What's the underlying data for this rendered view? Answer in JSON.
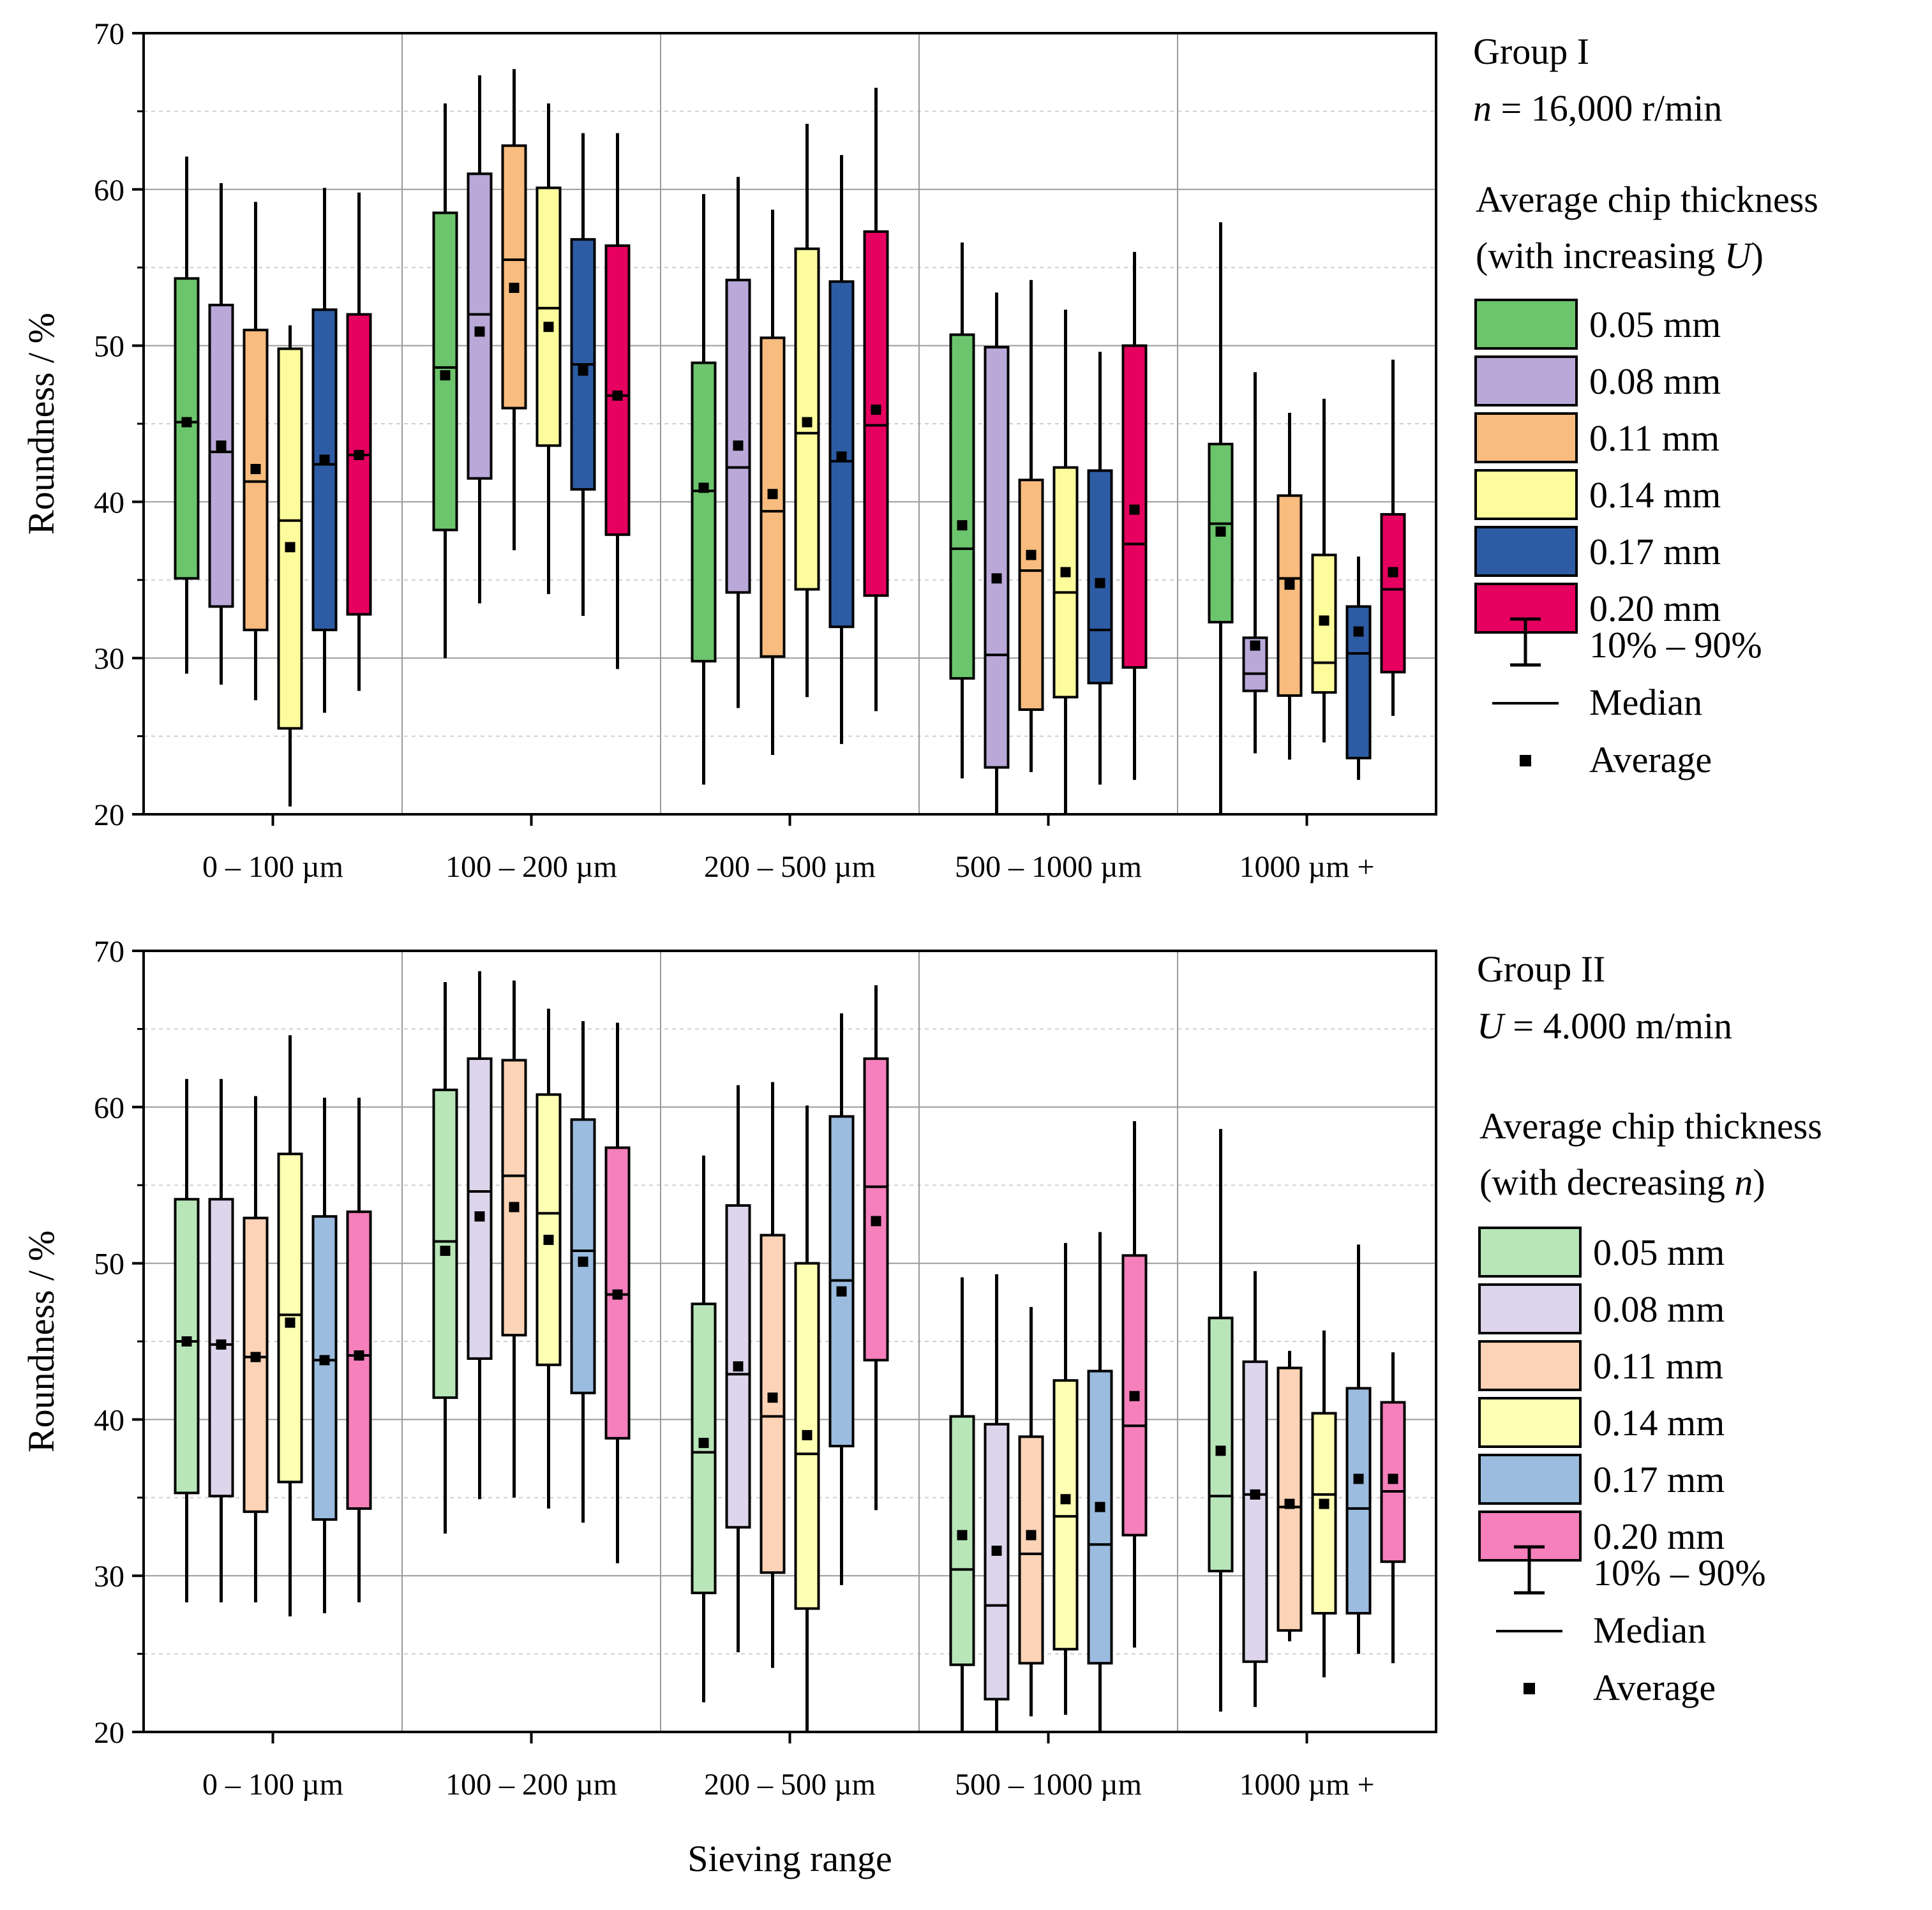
{
  "chart_data": [
    {
      "type": "box",
      "title": "Group I",
      "subtitle": "n = 16,000 r/min",
      "legend_title": [
        "Average chip thickness",
        "(with increasing U)"
      ],
      "ylabel": "Roundness / %",
      "xlabel": "",
      "ylim": [
        20,
        70
      ],
      "yticks": [
        20,
        30,
        40,
        50,
        60,
        70
      ],
      "grid": true,
      "legend_position": "right",
      "categories": [
        "0 – 100 µm",
        "100 – 200 µm",
        "200 – 500 µm",
        "500 – 1000 µm",
        "1000 µm +"
      ],
      "series": [
        {
          "name": "0.05 mm",
          "color": "#6cc56c",
          "boxes": [
            {
              "p10": 29,
              "q1": 35.1,
              "median": 45.1,
              "q3": 54.3,
              "p90": 62.1,
              "mean": 45.1
            },
            {
              "p10": 30,
              "q1": 38.2,
              "median": 48.6,
              "q3": 58.5,
              "p90": 65.5,
              "mean": 48.1
            },
            {
              "p10": 21.9,
              "q1": 29.8,
              "median": 40.7,
              "q3": 48.9,
              "p90": 59.7,
              "mean": 40.9
            },
            {
              "p10": 22.3,
              "q1": 28.7,
              "median": 37,
              "q3": 50.7,
              "p90": 56.6,
              "mean": 38.5
            },
            {
              "p10": 20,
              "q1": 32.3,
              "median": 38.6,
              "q3": 43.7,
              "p90": 57.9,
              "mean": 38.1
            }
          ]
        },
        {
          "name": "0.08 mm",
          "color": "#b9a8d8",
          "boxes": [
            {
              "p10": 28.3,
              "q1": 33.3,
              "median": 43.2,
              "q3": 52.6,
              "p90": 60.4,
              "mean": 43.6
            },
            {
              "p10": 33.5,
              "q1": 41.5,
              "median": 52,
              "q3": 61,
              "p90": 67.3,
              "mean": 50.9
            },
            {
              "p10": 26.8,
              "q1": 34.2,
              "median": 42.2,
              "q3": 54.2,
              "p90": 60.8,
              "mean": 43.6
            },
            {
              "p10": 20,
              "q1": 23,
              "median": 30.2,
              "q3": 49.9,
              "p90": 53.4,
              "mean": 35.1
            },
            {
              "p10": 23.9,
              "q1": 27.9,
              "median": 29,
              "q3": 31.3,
              "p90": 48.3,
              "mean": 30.8
            }
          ]
        },
        {
          "name": "0.11 mm",
          "color": "#f7bc7e",
          "boxes": [
            {
              "p10": 27.3,
              "q1": 31.8,
              "median": 41.3,
              "q3": 51,
              "p90": 59.2,
              "mean": 42.1
            },
            {
              "p10": 36.9,
              "q1": 46,
              "median": 55.5,
              "q3": 62.8,
              "p90": 67.7,
              "mean": 53.7
            },
            {
              "p10": 23.8,
              "q1": 30.1,
              "median": 39.4,
              "q3": 50.5,
              "p90": 58.7,
              "mean": 40.5
            },
            {
              "p10": 22.7,
              "q1": 26.7,
              "median": 35.6,
              "q3": 41.4,
              "p90": 54.2,
              "mean": 36.6
            },
            {
              "p10": 23.5,
              "q1": 27.6,
              "median": 35.1,
              "q3": 40.4,
              "p90": 45.7,
              "mean": 34.7
            }
          ]
        },
        {
          "name": "0.14 mm",
          "color": "#fdfc9c",
          "boxes": [
            {
              "p10": 20.5,
              "q1": 25.5,
              "median": 38.8,
              "q3": 49.8,
              "p90": 51.3,
              "mean": 37.1
            },
            {
              "p10": 34.1,
              "q1": 43.6,
              "median": 52.4,
              "q3": 60.1,
              "p90": 65.5,
              "mean": 51.2
            },
            {
              "p10": 27.5,
              "q1": 34.4,
              "median": 44.4,
              "q3": 56.2,
              "p90": 64.2,
              "mean": 45.1
            },
            {
              "p10": 20,
              "q1": 27.5,
              "median": 34.2,
              "q3": 42.2,
              "p90": 52.3,
              "mean": 35.5
            },
            {
              "p10": 24.6,
              "q1": 27.8,
              "median": 29.7,
              "q3": 36.6,
              "p90": 46.6,
              "mean": 32.4
            }
          ]
        },
        {
          "name": "0.17 mm",
          "color": "#2e5ca4",
          "boxes": [
            {
              "p10": 26.5,
              "q1": 31.8,
              "median": 42.4,
              "q3": 52.3,
              "p90": 60.1,
              "mean": 42.7
            },
            {
              "p10": 32.7,
              "q1": 40.8,
              "median": 48.8,
              "q3": 56.8,
              "p90": 63.6,
              "mean": 48.4
            },
            {
              "p10": 24.5,
              "q1": 32,
              "median": 42.6,
              "q3": 54.1,
              "p90": 62.2,
              "mean": 42.9
            },
            {
              "p10": 21.9,
              "q1": 28.4,
              "median": 31.8,
              "q3": 42,
              "p90": 49.6,
              "mean": 34.8
            },
            {
              "p10": 22.2,
              "q1": 23.6,
              "median": 30.3,
              "q3": 33.3,
              "p90": 36.5,
              "mean": 31.7
            }
          ]
        },
        {
          "name": "0.20 mm",
          "color": "#e6005f",
          "boxes": [
            {
              "p10": 27.9,
              "q1": 32.8,
              "median": 43,
              "q3": 52,
              "p90": 59.8,
              "mean": 43
            },
            {
              "p10": 29.3,
              "q1": 37.9,
              "median": 46.8,
              "q3": 56.4,
              "p90": 63.6,
              "mean": 46.8
            },
            {
              "p10": 26.6,
              "q1": 34,
              "median": 44.9,
              "q3": 57.3,
              "p90": 66.5,
              "mean": 45.9
            },
            {
              "p10": 22.2,
              "q1": 29.4,
              "median": 37.3,
              "q3": 50,
              "p90": 56,
              "mean": 39.5
            },
            {
              "p10": 26.3,
              "q1": 29.1,
              "median": 34.4,
              "q3": 39.2,
              "p90": 49.1,
              "mean": 35.5
            }
          ]
        }
      ],
      "legend_extra": [
        "10% – 90%",
        "Median",
        "Average"
      ]
    },
    {
      "type": "box",
      "title": "Group II",
      "subtitle": "U = 4.000 m/min",
      "legend_title": [
        "Average chip thickness",
        "(with decreasing n)"
      ],
      "ylabel": "Roundness / %",
      "xlabel": "Sieving range",
      "ylim": [
        20,
        70
      ],
      "yticks": [
        20,
        30,
        40,
        50,
        60,
        70
      ],
      "grid": true,
      "legend_position": "right",
      "categories": [
        "0 – 100 µm",
        "100 – 200 µm",
        "200 – 500 µm",
        "500 – 1000 µm",
        "1000 µm +"
      ],
      "series": [
        {
          "name": "0.05 mm",
          "color": "#b8e6b8",
          "boxes": [
            {
              "p10": 28.3,
              "q1": 35.3,
              "median": 45,
              "q3": 54.1,
              "p90": 61.8,
              "mean": 45
            },
            {
              "p10": 32.7,
              "q1": 41.4,
              "median": 51.4,
              "q3": 61.1,
              "p90": 68,
              "mean": 50.8
            },
            {
              "p10": 21.9,
              "q1": 28.9,
              "median": 37.9,
              "q3": 47.4,
              "p90": 56.9,
              "mean": 38.5
            },
            {
              "p10": 20,
              "q1": 24.3,
              "median": 30.4,
              "q3": 40.2,
              "p90": 49.1,
              "mean": 32.6
            },
            {
              "p10": 21.3,
              "q1": 30.3,
              "median": 35.1,
              "q3": 46.5,
              "p90": 58.6,
              "mean": 38
            }
          ]
        },
        {
          "name": "0.08 mm",
          "color": "#ddd5ec",
          "boxes": [
            {
              "p10": 28.3,
              "q1": 35.1,
              "median": 44.8,
              "q3": 54.1,
              "p90": 61.8,
              "mean": 44.8
            },
            {
              "p10": 34.9,
              "q1": 43.9,
              "median": 54.6,
              "q3": 63.1,
              "p90": 68.7,
              "mean": 53
            },
            {
              "p10": 25.1,
              "q1": 33.1,
              "median": 42.9,
              "q3": 53.7,
              "p90": 61.4,
              "mean": 43.4
            },
            {
              "p10": 20,
              "q1": 22.1,
              "median": 28.1,
              "q3": 39.7,
              "p90": 49.3,
              "mean": 31.6
            },
            {
              "p10": 21.6,
              "q1": 24.5,
              "median": 35.2,
              "q3": 43.7,
              "p90": 49.5,
              "mean": 35.2
            }
          ]
        },
        {
          "name": "0.11 mm",
          "color": "#fcd3b6",
          "boxes": [
            {
              "p10": 28.3,
              "q1": 34.1,
              "median": 44,
              "q3": 52.9,
              "p90": 60.7,
              "mean": 44
            },
            {
              "p10": 35,
              "q1": 45.4,
              "median": 55.6,
              "q3": 63,
              "p90": 68.1,
              "mean": 53.6
            },
            {
              "p10": 24.1,
              "q1": 30.2,
              "median": 40.2,
              "q3": 51.8,
              "p90": 61.6,
              "mean": 41.4
            },
            {
              "p10": 21,
              "q1": 24.4,
              "median": 31.4,
              "q3": 38.9,
              "p90": 47.2,
              "mean": 32.6
            },
            {
              "p10": 25.8,
              "q1": 26.5,
              "median": 34.4,
              "q3": 43.3,
              "p90": 44.4,
              "mean": 34.6
            }
          ]
        },
        {
          "name": "0.14 mm",
          "color": "#feffb3",
          "boxes": [
            {
              "p10": 27.4,
              "q1": 36,
              "median": 46.7,
              "q3": 57,
              "p90": 64.6,
              "mean": 46.2
            },
            {
              "p10": 34.3,
              "q1": 43.5,
              "median": 53.2,
              "q3": 60.8,
              "p90": 66.3,
              "mean": 51.5
            },
            {
              "p10": 20,
              "q1": 27.9,
              "median": 37.8,
              "q3": 50,
              "p90": 60.1,
              "mean": 39
            },
            {
              "p10": 21.1,
              "q1": 25.3,
              "median": 33.8,
              "q3": 42.5,
              "p90": 51.3,
              "mean": 34.9
            },
            {
              "p10": 23.5,
              "q1": 27.6,
              "median": 35.2,
              "q3": 40.4,
              "p90": 45.7,
              "mean": 34.6
            }
          ]
        },
        {
          "name": "0.17 mm",
          "color": "#9bbcde",
          "boxes": [
            {
              "p10": 27.6,
              "q1": 33.6,
              "median": 43.8,
              "q3": 53,
              "p90": 60.6,
              "mean": 43.8
            },
            {
              "p10": 33.4,
              "q1": 41.7,
              "median": 50.8,
              "q3": 59.2,
              "p90": 65.5,
              "mean": 50.1
            },
            {
              "p10": 29.4,
              "q1": 38.3,
              "median": 48.9,
              "q3": 59.4,
              "p90": 66,
              "mean": 48.2
            },
            {
              "p10": 20,
              "q1": 24.4,
              "median": 32,
              "q3": 43.1,
              "p90": 52,
              "mean": 34.4
            },
            {
              "p10": 25,
              "q1": 27.6,
              "median": 34.3,
              "q3": 42,
              "p90": 51.2,
              "mean": 36.2
            }
          ]
        },
        {
          "name": "0.20 mm",
          "color": "#f580bc",
          "boxes": [
            {
              "p10": 28.3,
              "q1": 34.3,
              "median": 44.1,
              "q3": 53.3,
              "p90": 60.6,
              "mean": 44.1
            },
            {
              "p10": 30.8,
              "q1": 38.8,
              "median": 48,
              "q3": 57.4,
              "p90": 65.4,
              "mean": 48
            },
            {
              "p10": 34.2,
              "q1": 43.8,
              "median": 54.9,
              "q3": 63.1,
              "p90": 67.8,
              "mean": 52.7
            },
            {
              "p10": 25.4,
              "q1": 32.6,
              "median": 39.6,
              "q3": 50.5,
              "p90": 59.1,
              "mean": 41.5
            },
            {
              "p10": 24.4,
              "q1": 30.9,
              "median": 35.4,
              "q3": 41.1,
              "p90": 44.3,
              "mean": 36.2
            }
          ]
        }
      ],
      "legend_extra": [
        "10% – 90%",
        "Median",
        "Average"
      ]
    }
  ]
}
